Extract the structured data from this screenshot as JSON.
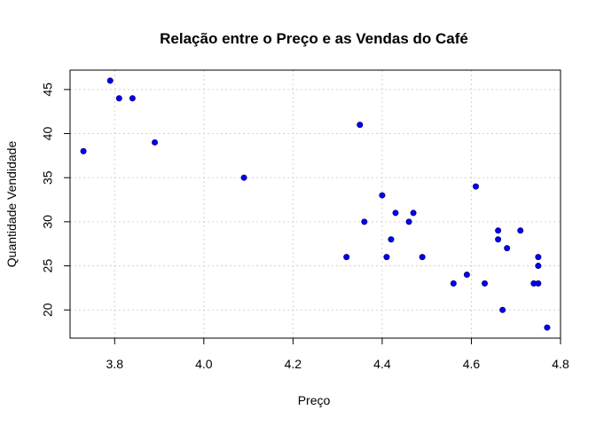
{
  "chart_data": {
    "type": "scatter",
    "title": "Relação entre o Preço e as Vendas do Café",
    "xlabel": "Preço",
    "ylabel": "Quantidade Vendidade",
    "xlim": [
      3.7,
      4.8
    ],
    "ylim": [
      16.8,
      47.2
    ],
    "xticks": [
      3.8,
      4.0,
      4.2,
      4.4,
      4.6,
      4.8
    ],
    "xtick_labels": [
      "3.8",
      "4.0",
      "4.2",
      "4.4",
      "4.6",
      "4.8"
    ],
    "yticks": [
      20,
      25,
      30,
      35,
      40,
      45
    ],
    "ytick_labels": [
      "20",
      "25",
      "30",
      "35",
      "40",
      "45"
    ],
    "grid": true,
    "point_color": "#0000ff",
    "point_border": "#00008b",
    "points": [
      {
        "x": 3.73,
        "y": 38
      },
      {
        "x": 3.79,
        "y": 46
      },
      {
        "x": 3.81,
        "y": 44
      },
      {
        "x": 3.84,
        "y": 44
      },
      {
        "x": 3.89,
        "y": 39
      },
      {
        "x": 4.09,
        "y": 35
      },
      {
        "x": 4.32,
        "y": 26
      },
      {
        "x": 4.35,
        "y": 41
      },
      {
        "x": 4.36,
        "y": 30
      },
      {
        "x": 4.4,
        "y": 33
      },
      {
        "x": 4.41,
        "y": 26
      },
      {
        "x": 4.42,
        "y": 28
      },
      {
        "x": 4.43,
        "y": 31
      },
      {
        "x": 4.46,
        "y": 30
      },
      {
        "x": 4.47,
        "y": 31
      },
      {
        "x": 4.49,
        "y": 26
      },
      {
        "x": 4.56,
        "y": 23
      },
      {
        "x": 4.59,
        "y": 24
      },
      {
        "x": 4.61,
        "y": 34
      },
      {
        "x": 4.63,
        "y": 23
      },
      {
        "x": 4.66,
        "y": 29
      },
      {
        "x": 4.66,
        "y": 28
      },
      {
        "x": 4.67,
        "y": 20
      },
      {
        "x": 4.68,
        "y": 27
      },
      {
        "x": 4.71,
        "y": 29
      },
      {
        "x": 4.74,
        "y": 23
      },
      {
        "x": 4.75,
        "y": 26
      },
      {
        "x": 4.75,
        "y": 25
      },
      {
        "x": 4.75,
        "y": 23
      },
      {
        "x": 4.77,
        "y": 18
      }
    ]
  }
}
